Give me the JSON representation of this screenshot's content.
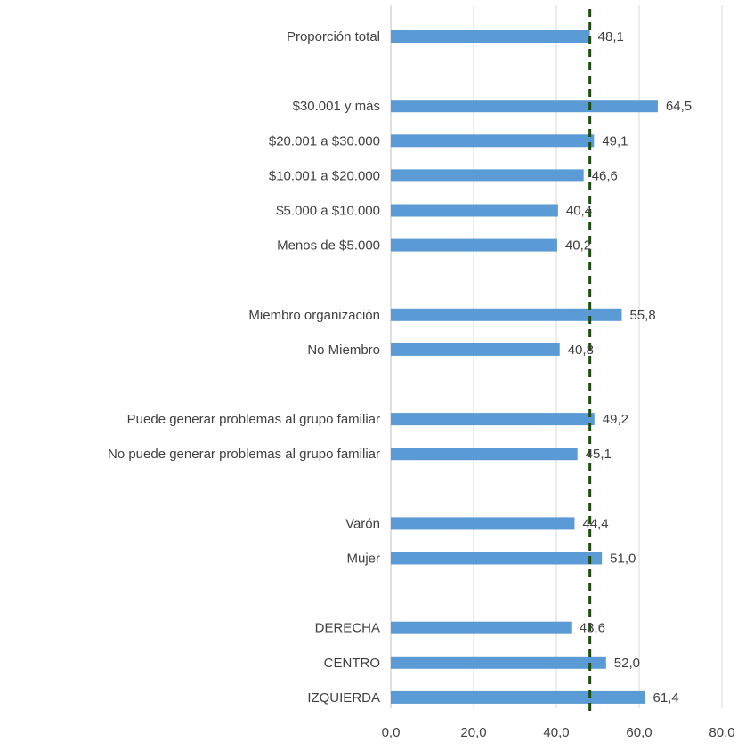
{
  "chart_data": {
    "type": "bar",
    "orientation": "horizontal",
    "categories": [
      "Proporción total",
      "",
      "$30.001 y más",
      "$20.001 a $30.000",
      "$10.001 a $20.000",
      "$5.000 a $10.000",
      "Menos de $5.000",
      "",
      "Miembro organización",
      "No Miembro",
      "",
      "Puede generar problemas al grupo familiar",
      "No puede generar problemas al grupo familiar",
      "",
      "Varón",
      "Mujer",
      "",
      "DERECHA",
      "CENTRO",
      "IZQUIERDA"
    ],
    "values": [
      48.1,
      null,
      64.5,
      49.1,
      46.6,
      40.4,
      40.2,
      null,
      55.8,
      40.8,
      null,
      49.2,
      45.1,
      null,
      44.4,
      51.0,
      null,
      43.6,
      52.0,
      61.4
    ],
    "value_labels": [
      "48,1",
      "",
      "64,5",
      "49,1",
      "46,6",
      "40,4",
      "40,2",
      "",
      "55,8",
      "40,8",
      "",
      "49,2",
      "45,1",
      "",
      "44,4",
      "51,0",
      "",
      "43,6",
      "52,0",
      "61,4"
    ],
    "xlim": [
      0,
      80
    ],
    "x_ticks": [
      0,
      20,
      40,
      60,
      80
    ],
    "x_tick_labels": [
      "0,0",
      "20,0",
      "40,0",
      "60,0",
      "80,0"
    ],
    "reference_line": {
      "value": 48.1,
      "style": "dashed",
      "color": "#1e4d12"
    },
    "bar_color": "#5b9bd5",
    "grid": true,
    "legend": false,
    "title": "",
    "xlabel": "",
    "ylabel": ""
  }
}
